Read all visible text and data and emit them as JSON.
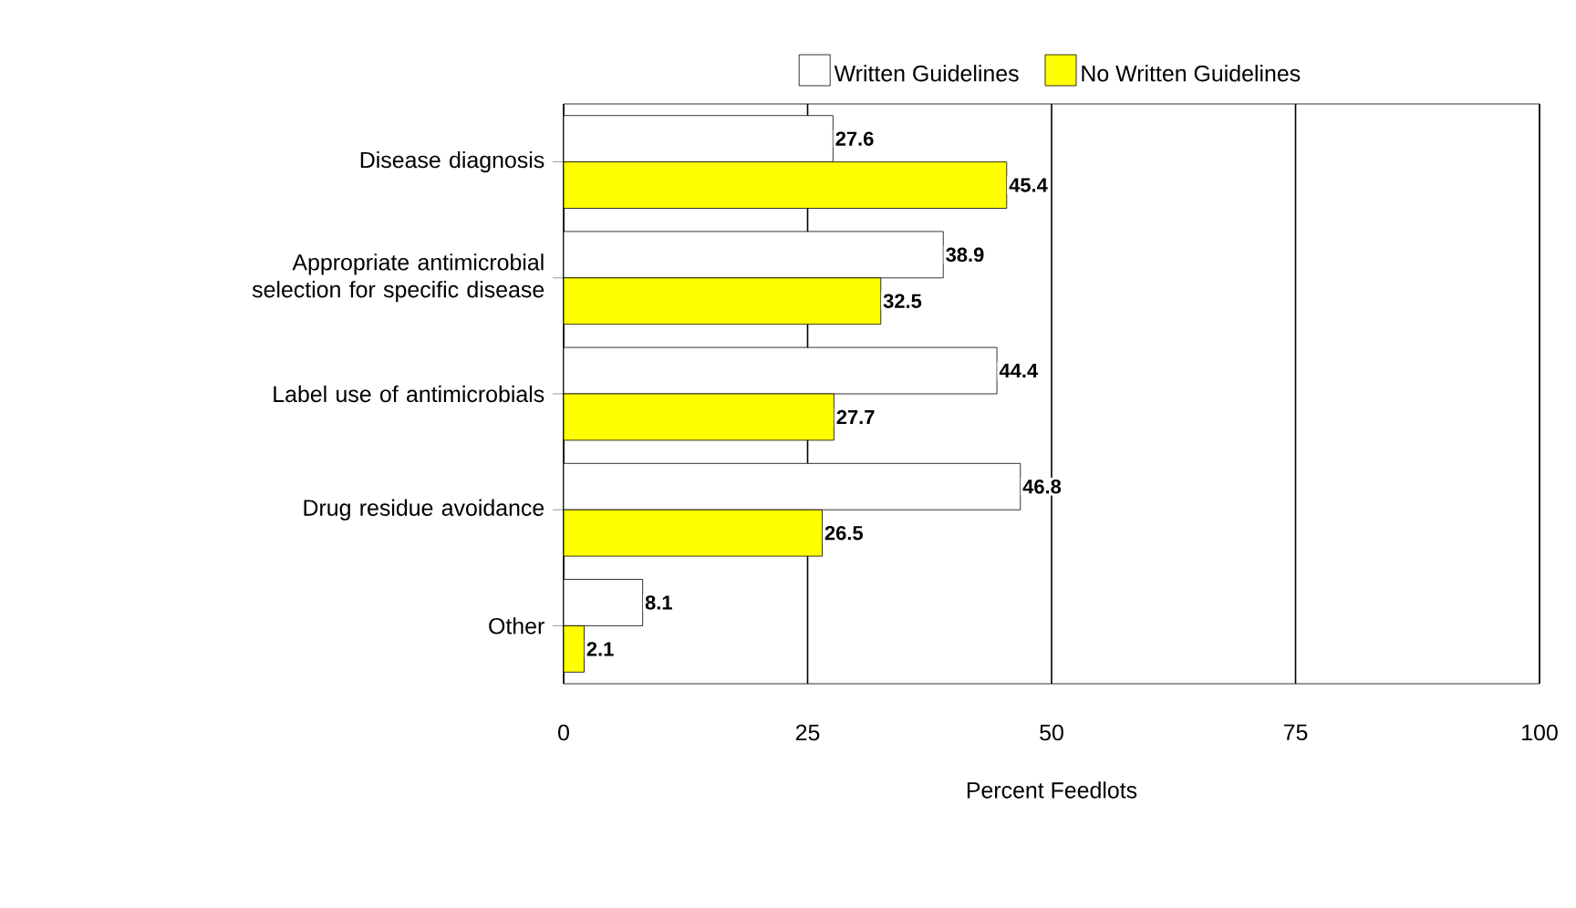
{
  "chart_data": {
    "type": "bar",
    "orientation": "horizontal",
    "categories": [
      "Disease diagnosis",
      "Appropriate antimicrobial selection for specific disease",
      "Label use of antimicrobials",
      "Drug residue avoidance",
      "Other"
    ],
    "series": [
      {
        "name": "Written Guidelines",
        "color": "#ffffff",
        "values": [
          27.6,
          38.9,
          44.4,
          46.8,
          8.1
        ]
      },
      {
        "name": "No Written Guidelines",
        "color": "#ffff00",
        "values": [
          45.4,
          32.5,
          27.7,
          26.5,
          2.1
        ]
      }
    ],
    "xlabel": "Percent Feedlots",
    "xlim": [
      0,
      100
    ],
    "xticks": [
      0,
      25,
      50,
      75,
      100
    ],
    "grid": "x",
    "legend": "top",
    "data_labels": true
  }
}
